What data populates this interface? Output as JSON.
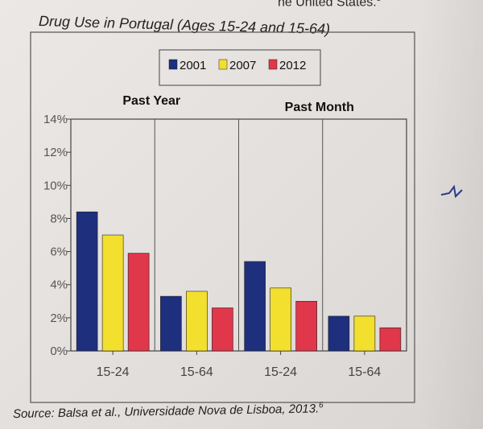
{
  "header_snippet": "he United States.",
  "header_footnote": "5",
  "source_text": "Source: Balsa et al., Universidade Nova de Lisboa, 2013.",
  "source_footnote": "6",
  "chart_data": {
    "type": "bar",
    "title": "Drug Use in Portugal (Ages 15-24 and 15-64)",
    "panels": [
      "Past Year",
      "Past Month"
    ],
    "categories": [
      "15-24",
      "15-64",
      "15-24",
      "15-64"
    ],
    "series": [
      {
        "name": "2001",
        "color": "#1e2f7e",
        "values": [
          8.4,
          3.3,
          5.4,
          2.1
        ]
      },
      {
        "name": "2007",
        "color": "#f2df2e",
        "values": [
          7.0,
          3.6,
          3.8,
          2.1
        ]
      },
      {
        "name": "2012",
        "color": "#e0374a",
        "values": [
          5.9,
          2.6,
          3.0,
          1.4
        ]
      }
    ],
    "yticks": [
      "0%",
      "2%",
      "4%",
      "6%",
      "8%",
      "10%",
      "12%",
      "14%"
    ],
    "ylim": [
      0,
      14
    ],
    "legend_placement": "top-center",
    "grid": false
  }
}
